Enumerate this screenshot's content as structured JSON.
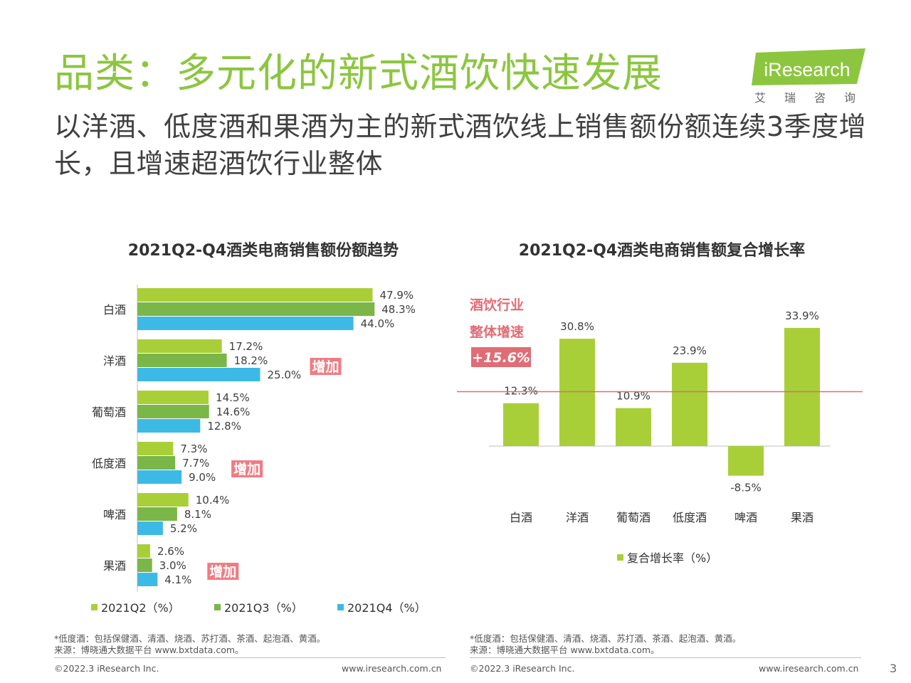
{
  "header": {
    "title": "品类：多元化的新式酒饮快速发展",
    "subtitle": "以洋酒、低度酒和果酒为主的新式酒饮线上销售额份额连续3季度增长，且增速超酒饮行业整体",
    "logo_text": "iResearch",
    "logo_cn": "艾瑞咨询"
  },
  "chart_data": [
    {
      "type": "bar",
      "orientation": "horizontal",
      "title": "2021Q2-Q4酒类电商销售额份额趋势",
      "categories": [
        "白酒",
        "洋酒",
        "葡萄酒",
        "低度酒",
        "啤酒",
        "果酒"
      ],
      "series": [
        {
          "name": "2021Q2（%）",
          "color": "#a9cf38",
          "values": [
            47.9,
            17.2,
            14.5,
            7.3,
            10.4,
            2.6
          ]
        },
        {
          "name": "2021Q3（%）",
          "color": "#7ab648",
          "values": [
            48.3,
            18.2,
            14.6,
            7.7,
            8.1,
            3.0
          ]
        },
        {
          "name": "2021Q4（%）",
          "color": "#3db9e6",
          "values": [
            44.0,
            25.0,
            12.8,
            9.0,
            5.2,
            4.1
          ]
        }
      ],
      "value_suffix": "%",
      "xlim": [
        0,
        60
      ],
      "legend_position": "bottom",
      "annotations": [
        {
          "text": "增加",
          "category": "洋酒",
          "color": "#f07c82"
        },
        {
          "text": "增加",
          "category": "低度酒",
          "color": "#f07c82"
        },
        {
          "text": "增加",
          "category": "果酒",
          "color": "#f07c82"
        }
      ]
    },
    {
      "type": "bar",
      "title": "2021Q2-Q4酒类电商销售额复合增长率",
      "categories": [
        "白酒",
        "洋酒",
        "葡萄酒",
        "低度酒",
        "啤酒",
        "果酒"
      ],
      "series": [
        {
          "name": "复合增长率（%）",
          "color": "#a9cf38",
          "values": [
            12.3,
            30.8,
            10.9,
            23.9,
            -8.5,
            33.9
          ]
        }
      ],
      "value_suffix": "%",
      "ylim": [
        -12,
        40
      ],
      "legend_position": "bottom",
      "reference_line": {
        "value": 15.6,
        "color": "#e06c75",
        "labels": [
          "酒饮行业",
          "整体增速",
          "+15.6%"
        ]
      }
    }
  ],
  "footer": {
    "note": "*低度酒：包括保健酒、清酒、烧酒、苏打酒、茶酒、起泡酒、黄酒。",
    "source": "来源：博晓通大数据平台 www.bxtdata.com。",
    "copyright": "©2022.3 iResearch Inc.",
    "website": "www.iresearch.com.cn",
    "page": "3"
  }
}
